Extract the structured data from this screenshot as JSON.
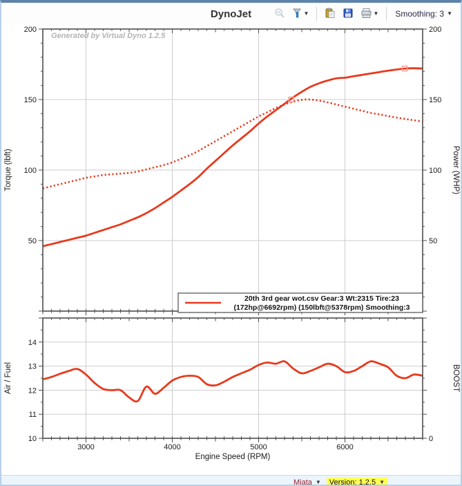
{
  "toolbar": {
    "title": "DynoJet",
    "smoothing_label": "Smoothing: 3",
    "icons": [
      {
        "name": "zoom-out"
      },
      {
        "name": "filter"
      },
      {
        "name": "paste"
      },
      {
        "name": "save"
      },
      {
        "name": "print"
      }
    ]
  },
  "watermark": "Generated by Virtual Dyno 1.2.5",
  "legend": {
    "line1": "20th  3rd gear wot.csv Gear:3 Wt:2315 Tire:23",
    "line2": "(172hp@6692rpm) (150lbft@5378rpm) Smoothing:3"
  },
  "statusbar": {
    "vehicle": "Miata",
    "version": "Version: 1.2.5"
  },
  "colors": {
    "curve": "#e8391d",
    "marker_outline": "#f4a093",
    "grid": "#cdcdcd",
    "axis": "#4d4d4d",
    "watermark_text": "#b4b4b4",
    "version_highlight": "#ffff54",
    "vehicle_text": "#96202c"
  },
  "chart_data": [
    {
      "type": "line",
      "title": "DynoJet",
      "xlabel": "Engine Speed (RPM)",
      "ylabel_left": "Torque (lbft)",
      "ylabel_right": "Power (WHP)",
      "xlim": [
        2500,
        6900
      ],
      "ylim": [
        0,
        200
      ],
      "x_ticks": [
        3000,
        4000,
        5000,
        6000
      ],
      "y_tick_labels": [
        50,
        100,
        150,
        200
      ],
      "grid_lines_y": [
        50,
        100,
        150
      ],
      "grid": true,
      "legend_position": "bottom-right-inside",
      "x_rpm": [
        2500,
        2600,
        2700,
        2800,
        2900,
        3000,
        3100,
        3200,
        3300,
        3400,
        3500,
        3600,
        3700,
        3800,
        3900,
        4000,
        4100,
        4200,
        4300,
        4400,
        4500,
        4600,
        4700,
        4800,
        4900,
        5000,
        5100,
        5200,
        5300,
        5400,
        5500,
        5600,
        5700,
        5800,
        5900,
        6000,
        6100,
        6200,
        6300,
        6400,
        6500,
        6600,
        6700,
        6800,
        6900
      ],
      "series": [
        {
          "name": "Power (WHP)",
          "line_style": "solid",
          "color": "#e8391d",
          "values": [
            46,
            47.5,
            49,
            50.5,
            52,
            53.5,
            55.5,
            57.5,
            59.5,
            61.5,
            64,
            66.5,
            69.5,
            73,
            77,
            81,
            85.5,
            90,
            95,
            101,
            106.5,
            112,
            117.5,
            122.5,
            127.5,
            133,
            138,
            142.5,
            147,
            151.5,
            155.5,
            159,
            161.5,
            163.5,
            165,
            165.5,
            166.5,
            167.5,
            168.5,
            169.5,
            170.5,
            171.3,
            172,
            172.2,
            172
          ],
          "peak": {
            "rpm": 6692,
            "value": 172,
            "label": "172hp@6692rpm"
          }
        },
        {
          "name": "Torque (lbft)",
          "line_style": "dotted",
          "color": "#e8391d",
          "values": [
            87,
            88.5,
            90,
            91.5,
            93,
            94.5,
            95.5,
            96.5,
            97,
            97.5,
            98,
            99,
            100.5,
            102,
            103.5,
            105.5,
            108,
            110.5,
            113.5,
            117,
            120.5,
            124,
            127.5,
            131,
            134.5,
            138,
            141,
            144,
            146.5,
            148.5,
            149.8,
            150,
            149.3,
            148,
            146.5,
            145,
            143.5,
            142,
            140.5,
            139.5,
            138.3,
            137.2,
            136.2,
            135.3,
            134.5
          ],
          "peak": {
            "rpm": 5378,
            "value": 150,
            "label": "150lbft@5378rpm"
          }
        }
      ]
    },
    {
      "type": "line",
      "xlabel": "Engine Speed (RPM)",
      "ylabel_left": "Air / Fuel",
      "ylabel_right": "BOOST",
      "xlim": [
        2500,
        6900
      ],
      "ylim": [
        10,
        15
      ],
      "x_ticks": [
        3000,
        4000,
        5000,
        6000
      ],
      "y_tick_labels": [
        10,
        11,
        12,
        13,
        14
      ],
      "grid_lines_y": [
        11,
        12,
        13,
        14
      ],
      "right_axis_labels": [
        {
          "value": 10,
          "text": "0"
        }
      ],
      "grid": true,
      "x_rpm": [
        2500,
        2600,
        2700,
        2800,
        2900,
        3000,
        3100,
        3200,
        3300,
        3400,
        3500,
        3600,
        3700,
        3800,
        3900,
        4000,
        4100,
        4200,
        4300,
        4400,
        4500,
        4600,
        4700,
        4800,
        4900,
        5000,
        5100,
        5200,
        5300,
        5400,
        5500,
        5600,
        5700,
        5800,
        5900,
        6000,
        6100,
        6200,
        6300,
        6400,
        6500,
        6600,
        6700,
        6800,
        6900
      ],
      "series": [
        {
          "name": "Air/Fuel",
          "line_style": "solid",
          "color": "#e8391d",
          "values": [
            12.45,
            12.55,
            12.68,
            12.8,
            12.88,
            12.65,
            12.3,
            12.05,
            12.0,
            12.0,
            11.7,
            11.55,
            12.15,
            11.85,
            12.1,
            12.4,
            12.55,
            12.6,
            12.55,
            12.25,
            12.2,
            12.35,
            12.55,
            12.7,
            12.85,
            13.05,
            13.15,
            13.1,
            13.2,
            12.9,
            12.7,
            12.8,
            12.95,
            13.1,
            13.0,
            12.75,
            12.8,
            13.0,
            13.2,
            13.1,
            12.95,
            12.6,
            12.5,
            12.65,
            12.6
          ]
        }
      ]
    }
  ]
}
